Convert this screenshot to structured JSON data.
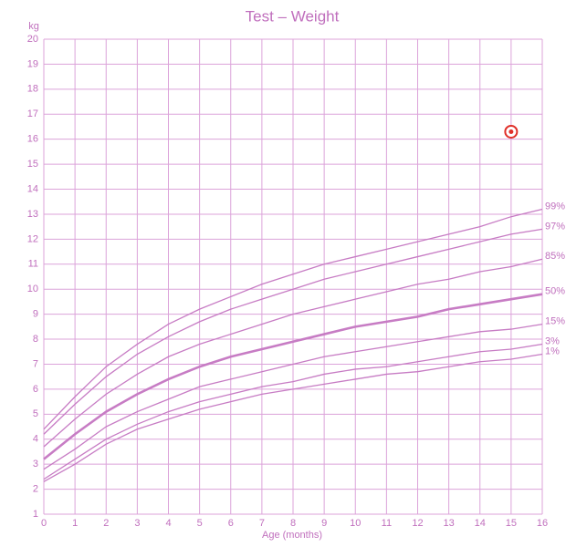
{
  "chart_data": {
    "type": "line",
    "title": "Test – Weight",
    "y_label": "kg",
    "x_label": "Age (months)",
    "x": [
      0,
      1,
      2,
      3,
      4,
      5,
      6,
      7,
      8,
      9,
      10,
      11,
      12,
      13,
      14,
      15,
      16
    ],
    "xlim": [
      0,
      16
    ],
    "ylim": [
      1,
      20
    ],
    "xticks": [
      0,
      1,
      2,
      3,
      4,
      5,
      6,
      7,
      8,
      9,
      10,
      11,
      12,
      13,
      14,
      15,
      16
    ],
    "yticks": [
      1,
      2,
      3,
      4,
      5,
      6,
      7,
      8,
      9,
      10,
      11,
      12,
      13,
      14,
      15,
      16,
      17,
      18,
      19,
      20
    ],
    "grid": true,
    "series": [
      {
        "name": "99%",
        "color": "#c77cc4",
        "width": 1.3,
        "values": [
          4.4,
          5.7,
          6.9,
          7.8,
          8.6,
          9.2,
          9.7,
          10.2,
          10.6,
          11.0,
          11.3,
          11.6,
          11.9,
          12.2,
          12.5,
          12.9,
          13.2
        ]
      },
      {
        "name": "97%",
        "color": "#c77cc4",
        "width": 1.3,
        "values": [
          4.2,
          5.4,
          6.5,
          7.4,
          8.1,
          8.7,
          9.2,
          9.6,
          10.0,
          10.4,
          10.7,
          11.0,
          11.3,
          11.6,
          11.9,
          12.2,
          12.4
        ]
      },
      {
        "name": "85%",
        "color": "#c77cc4",
        "width": 1.3,
        "values": [
          3.7,
          4.8,
          5.8,
          6.6,
          7.3,
          7.8,
          8.2,
          8.6,
          9.0,
          9.3,
          9.6,
          9.9,
          10.2,
          10.4,
          10.7,
          10.9,
          11.2
        ]
      },
      {
        "name": "50%",
        "color": "#c77cc4",
        "width": 2.6,
        "values": [
          3.2,
          4.2,
          5.1,
          5.8,
          6.4,
          6.9,
          7.3,
          7.6,
          7.9,
          8.2,
          8.5,
          8.7,
          8.9,
          9.2,
          9.4,
          9.6,
          9.8
        ]
      },
      {
        "name": "15%",
        "color": "#c77cc4",
        "width": 1.3,
        "values": [
          2.8,
          3.6,
          4.5,
          5.1,
          5.6,
          6.1,
          6.4,
          6.7,
          7.0,
          7.3,
          7.5,
          7.7,
          7.9,
          8.1,
          8.3,
          8.4,
          8.6
        ]
      },
      {
        "name": "3%",
        "color": "#c77cc4",
        "width": 1.3,
        "values": [
          2.4,
          3.2,
          4.0,
          4.6,
          5.1,
          5.5,
          5.8,
          6.1,
          6.3,
          6.6,
          6.8,
          6.9,
          7.1,
          7.3,
          7.5,
          7.6,
          7.8
        ]
      },
      {
        "name": "1%",
        "color": "#c77cc4",
        "width": 1.3,
        "values": [
          2.3,
          3.0,
          3.8,
          4.4,
          4.8,
          5.2,
          5.5,
          5.8,
          6.0,
          6.2,
          6.4,
          6.6,
          6.7,
          6.9,
          7.1,
          7.2,
          7.4
        ]
      }
    ],
    "marker": {
      "x": 15,
      "y": 16.3,
      "color": "#e0302a"
    }
  }
}
